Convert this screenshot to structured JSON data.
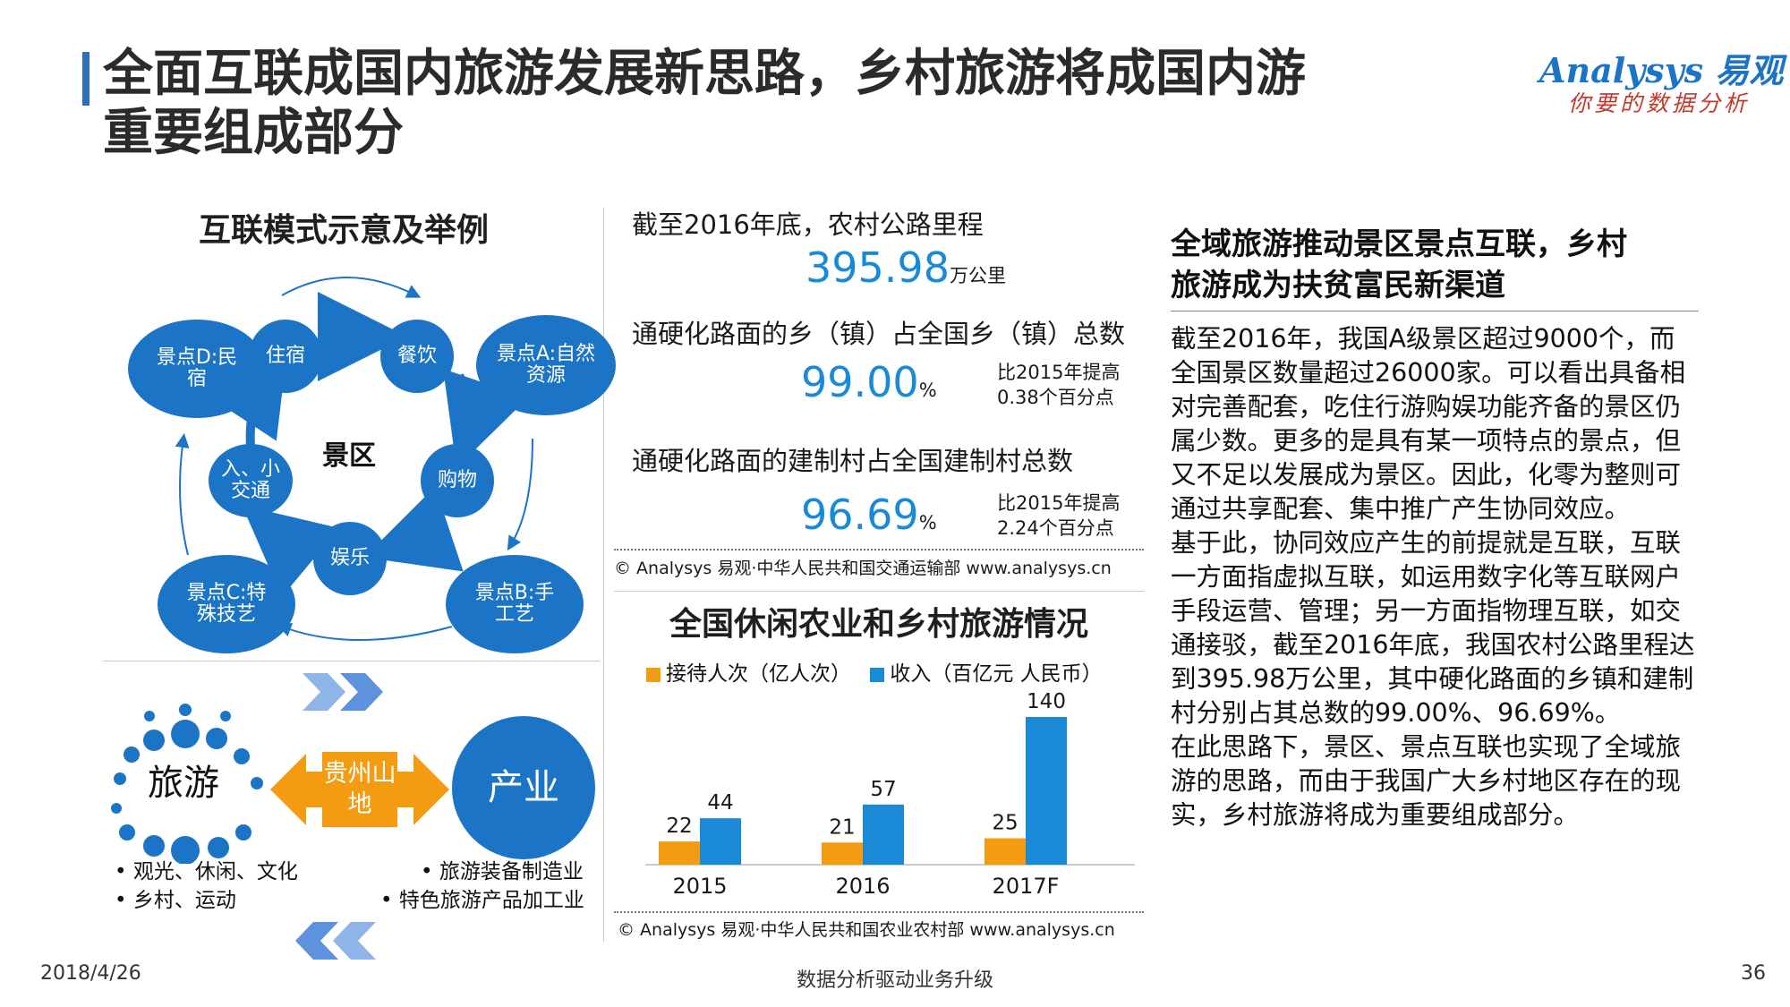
{
  "title": "全面互联成国内旅游发展新思路，乡村旅游将成国内游重要组成部分",
  "title_line1": "全面互联成国内旅游发展新思路，乡村旅游将成国内游",
  "title_line2": "重要组成部分",
  "logo": {
    "brand": "Analysys 易观",
    "slogan": "你要的数据分析"
  },
  "colors": {
    "accent": "#1b74c5",
    "orange": "#f39c12",
    "title_bar": "#2f6db5"
  },
  "left": {
    "section_title": "互联模式示意及举例",
    "center_label": "景区",
    "inner_nodes": [
      "住宿",
      "餐饮",
      "购物",
      "娱乐",
      "入、小交通"
    ],
    "outer_nodes": [
      "景点D:民宿",
      "景点A:自然资源",
      "景点B:手工艺",
      "景点C:特殊技艺"
    ],
    "bottom": {
      "left_label": "旅游",
      "middle_label": "贵州山地",
      "right_label": "产业",
      "left_items": [
        "• 观光、休闲、文化",
        "• 乡村、运动"
      ],
      "right_items": [
        "• 旅游装备制造业",
        "• 特色旅游产品加工业"
      ]
    }
  },
  "middle": {
    "stat1_label": "截至2016年底，农村公路里程",
    "stat1_value": "395.98",
    "stat1_unit": "万公里",
    "stat2_label": "通硬化路面的乡（镇）占全国乡（镇）总数",
    "stat2_value": "99.00",
    "stat2_unit": "%",
    "stat2_note": [
      "比2015年提高",
      "0.38个百分点"
    ],
    "stat3_label": "通硬化路面的建制村占全国建制村总数",
    "stat3_value": "96.69",
    "stat3_unit": "%",
    "stat3_note": [
      "比2015年提高",
      "2.24个百分点"
    ],
    "source1": "© Analysys 易观·中华人民共和国交通运输部 www.analysys.cn",
    "chart_title": "全国休闲农业和乡村旅游情况",
    "source2": "© Analysys 易观·中华人民共和国农业农村部 www.analysys.cn"
  },
  "chart_data": {
    "type": "bar",
    "title": "全国休闲农业和乡村旅游情况",
    "categories": [
      "2015",
      "2016",
      "2017F"
    ],
    "series": [
      {
        "name": "接待人次（亿人次）",
        "values": [
          22,
          21,
          25
        ],
        "color": "#f39c12"
      },
      {
        "name": "收入（百亿元 人民币）",
        "values": [
          44,
          57,
          140
        ],
        "color": "#1b8ad6"
      }
    ],
    "ylim": [
      0,
      140
    ],
    "legend": "top",
    "grid": false
  },
  "right": {
    "section_title": [
      "全域旅游推动景区景点互联，乡村",
      "旅游成为扶贫富民新渠道"
    ],
    "paragraphs": [
      "截至2016年，我国A级景区超过9000个，而全国景区数量超过26000家。可以看出具备相对完善配套，吃住行游购娱功能齐备的景区仍属少数。更多的是具有某一项特点的景点，但又不足以发展成为景区。因此，化零为整则可通过共享配套、集中推广产生协同效应。",
      "基于此，协同效应产生的前提就是互联，互联一方面指虚拟互联，如运用数字化等互联网户手段运营、管理；另一方面指物理互联，如交通接驳，截至2016年底，我国农村公路里程达到395.98万公里，其中硬化路面的乡镇和建制村分别占其总数的99.00%、96.69%。",
      "在此思路下，景区、景点互联也实现了全域旅游的思路，而由于我国广大乡村地区存在的现实，乡村旅游将成为重要组成部分。"
    ]
  },
  "footer": {
    "date": "2018/4/26",
    "center": "数据分析驱动业务升级",
    "page": "36"
  }
}
